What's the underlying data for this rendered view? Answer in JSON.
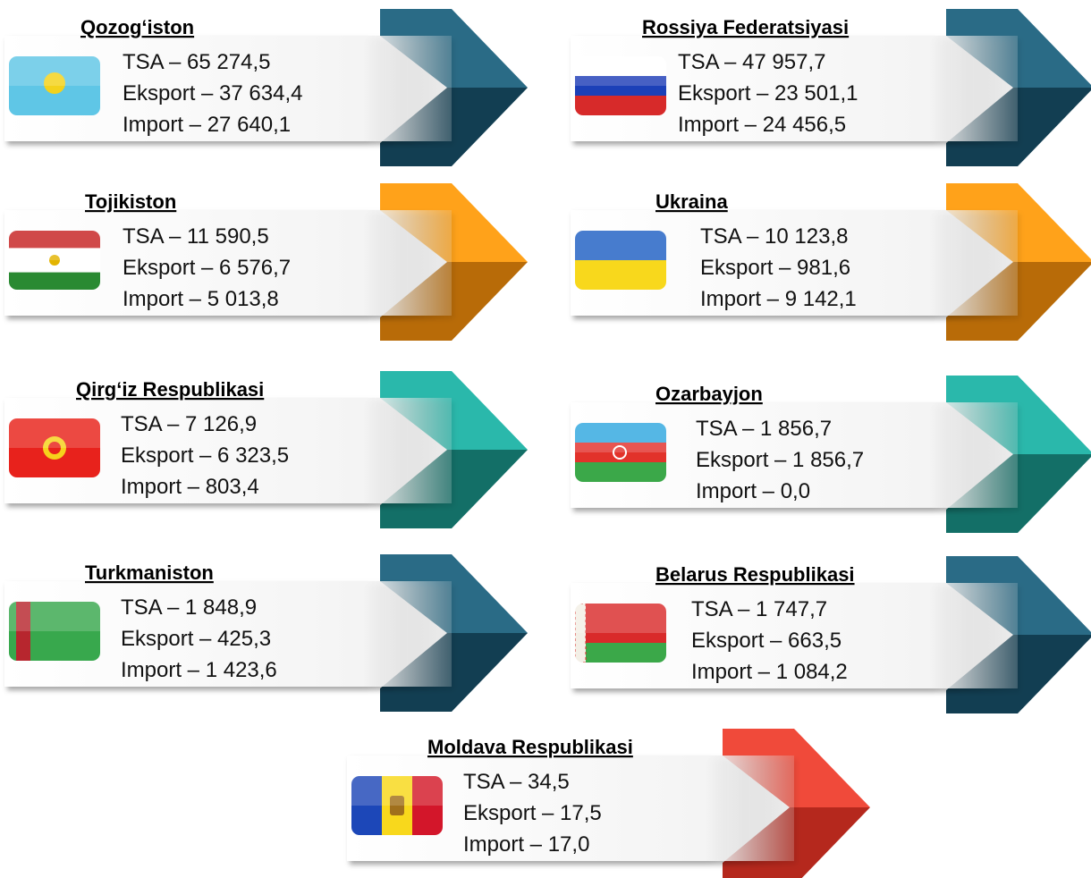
{
  "cards": [
    {
      "name": "Qozog‘iston",
      "lines": [
        "TSA – 65 274,5",
        "Eksport – 37 634,4",
        "Import – 27 640,1"
      ]
    },
    {
      "name": "Rossiya  Federatsiyasi",
      "lines": [
        "TSA – 47 957,7",
        "Eksport – 23 501,1",
        "Import – 24 456,5"
      ]
    },
    {
      "name": "Tojikiston",
      "lines": [
        "TSA – 11 590,5",
        "Eksport – 6 576,7",
        "Import – 5 013,8"
      ]
    },
    {
      "name": "Ukraina",
      "lines": [
        "TSA – 10 123,8",
        "Eksport – 981,6",
        "Import – 9 142,1"
      ]
    },
    {
      "name": "Qirg‘iz Respublikasi",
      "lines": [
        "TSA – 7 126,9",
        "Eksport – 6 323,5",
        "Import – 803,4"
      ]
    },
    {
      "name": "Ozarbayjon",
      "lines": [
        "TSA – 1 856,7",
        "Eksport – 1 856,7",
        "Import – 0,0"
      ]
    },
    {
      "name": "Turkmaniston",
      "lines": [
        "TSA – 1 848,9",
        "Eksport – 425,3",
        "Import – 1 423,6"
      ]
    },
    {
      "name": "Belarus  Respublikasi",
      "lines": [
        "TSA – 1 747,7",
        "Eksport – 663,5",
        "Import – 1 084,2"
      ]
    },
    {
      "name": "Moldava  Respublikasi",
      "lines": [
        "TSA – 34,5",
        "Eksport – 17,5",
        "Import – 17,0"
      ]
    }
  ]
}
